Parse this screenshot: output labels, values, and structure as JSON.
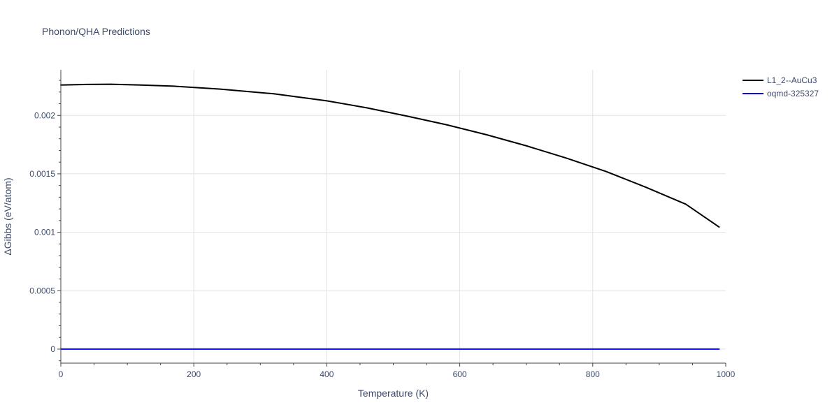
{
  "chart_data": {
    "type": "line",
    "title": "Phonon/QHA Predictions",
    "xlabel": "Temperature (K)",
    "ylabel": "ΔGibbs (eV/atom)",
    "xlim": [
      0,
      1000
    ],
    "ylim": [
      -0.00012,
      0.00239
    ],
    "x_ticks": [
      0,
      200,
      400,
      600,
      800,
      1000
    ],
    "x_tick_labels": [
      "0",
      "200",
      "400",
      "600",
      "800",
      "1000"
    ],
    "y_ticks": [
      0,
      0.0005,
      0.001,
      0.0015,
      0.002
    ],
    "y_tick_labels": [
      "0",
      "0.0005",
      "0.001",
      "0.0015",
      "0.002"
    ],
    "grid": true,
    "legend_position": "top-right",
    "series": [
      {
        "name": "L1_2--AuCu3",
        "color": "#000000",
        "x": [
          0,
          40,
          75,
          120,
          170,
          240,
          320,
          400,
          460,
          520,
          580,
          640,
          700,
          760,
          820,
          880,
          940,
          990
        ],
        "y": [
          0.00226,
          0.002265,
          0.002267,
          0.00226,
          0.00225,
          0.002225,
          0.002185,
          0.002125,
          0.002065,
          0.001995,
          0.00192,
          0.001835,
          0.00174,
          0.001635,
          0.00152,
          0.001385,
          0.00124,
          0.001045
        ]
      },
      {
        "name": "oqmd-325327",
        "color": "#0000ff",
        "x": [
          0,
          990
        ],
        "y": [
          0,
          0
        ]
      }
    ]
  }
}
